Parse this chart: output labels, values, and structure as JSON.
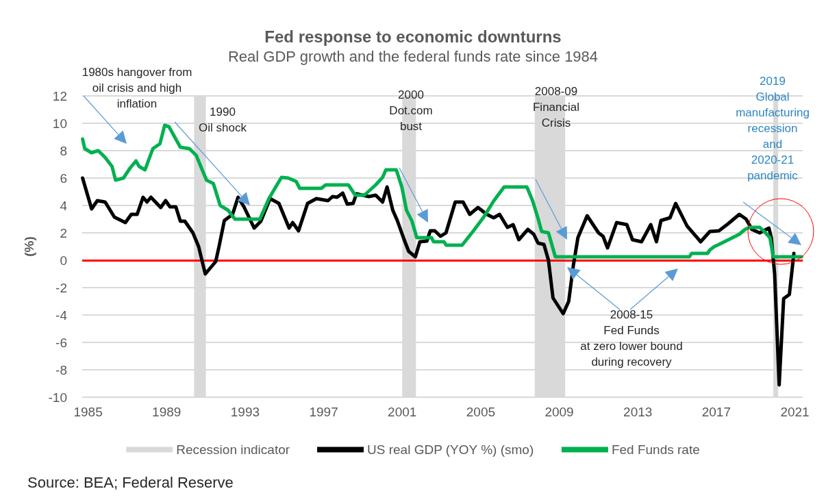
{
  "chart_data": {
    "type": "line",
    "title": "Fed response to economic downturns",
    "subtitle": "Real GDP growth and the federal funds rate since 1984",
    "ylabel": "(%)",
    "xlim": [
      1984.7,
      2021.4
    ],
    "xticks": [
      1985,
      1989,
      1993,
      1997,
      2001,
      2005,
      2009,
      2013,
      2017,
      2021
    ],
    "ylim": [
      -10,
      12
    ],
    "yticks": [
      -10,
      -8,
      -6,
      -4,
      -2,
      0,
      2,
      4,
      6,
      8,
      10,
      12
    ],
    "grid": "y",
    "legend": "bottom",
    "marker": "none",
    "line_style": "solid",
    "bands": [
      {
        "axis": "x",
        "from": 1990.4,
        "to": 1991.0,
        "label": "Recession indicator",
        "color": "#d9d9d9"
      },
      {
        "axis": "x",
        "from": 2001.0,
        "to": 2001.7,
        "color": "#d9d9d9"
      },
      {
        "axis": "x",
        "from": 2007.75,
        "to": 2009.3,
        "color": "#d9d9d9"
      },
      {
        "axis": "x",
        "from": 2019.9,
        "to": 2020.15,
        "color": "#d9d9d9"
      }
    ],
    "ref_lines": [
      {
        "axis": "y",
        "value": 0,
        "color": "#ff0000"
      }
    ],
    "series": [
      {
        "name": "US real GDP (YOY %) (smo)",
        "color": "#000000",
        "x": [
          1984.72,
          1985.18,
          1985.47,
          1985.87,
          1986.34,
          1986.9,
          1987.2,
          1987.5,
          1987.8,
          1988.0,
          1988.2,
          1988.7,
          1988.95,
          1989.17,
          1989.47,
          1989.7,
          1989.93,
          1990.34,
          1990.63,
          1990.97,
          1991.5,
          1991.67,
          1991.94,
          1992.36,
          1992.64,
          1992.94,
          1993.46,
          1993.8,
          1994.27,
          1994.72,
          1995.24,
          1995.42,
          1995.72,
          1996.18,
          1996.63,
          1997.22,
          1997.45,
          1997.68,
          1997.97,
          1998.2,
          1998.5,
          1998.67,
          1999.3,
          1999.65,
          2000.0,
          2000.23,
          2000.52,
          2000.75,
          2001.1,
          2001.33,
          2001.67,
          2001.9,
          2002.26,
          2002.43,
          2002.66,
          2002.95,
          2003.23,
          2003.7,
          2004.1,
          2004.44,
          2004.86,
          2005.31,
          2005.66,
          2005.96,
          2006.36,
          2006.65,
          2006.94,
          2007.4,
          2007.7,
          2007.92,
          2008.22,
          2008.45,
          2008.68,
          2009.2,
          2009.48,
          2009.72,
          2009.95,
          2010.42,
          2011.0,
          2011.23,
          2011.46,
          2011.92,
          2012.44,
          2012.73,
          2013.19,
          2013.66,
          2013.95,
          2014.18,
          2014.64,
          2014.93,
          2015.51,
          2016.2,
          2016.67,
          2017.13,
          2017.59,
          2018.17,
          2018.52,
          2018.81,
          2019.21,
          2019.68,
          2019.8,
          2019.97,
          2020.2,
          2020.43,
          2020.72,
          2020.95
        ],
        "values": [
          6.0,
          3.75,
          4.35,
          4.25,
          3.15,
          2.75,
          3.35,
          3.35,
          4.6,
          4.25,
          4.6,
          3.85,
          4.35,
          3.9,
          3.9,
          2.85,
          2.85,
          2.0,
          1.0,
          -1.0,
          -0.1,
          1.0,
          2.9,
          3.35,
          4.6,
          3.9,
          2.35,
          2.85,
          4.5,
          4.15,
          2.35,
          2.75,
          2.15,
          4.15,
          4.5,
          4.35,
          4.65,
          4.6,
          4.9,
          4.1,
          4.15,
          4.85,
          4.65,
          4.75,
          4.25,
          5.35,
          3.65,
          2.9,
          1.5,
          0.65,
          0.25,
          1.35,
          1.4,
          2.15,
          2.15,
          1.75,
          2.0,
          4.25,
          4.25,
          3.35,
          3.85,
          3.35,
          3.1,
          3.35,
          2.4,
          2.6,
          1.5,
          2.25,
          1.9,
          1.25,
          1.15,
          0.0,
          -2.75,
          -3.9,
          -3.0,
          -0.35,
          1.65,
          3.25,
          2.0,
          1.75,
          0.9,
          2.75,
          2.6,
          1.5,
          1.35,
          2.6,
          1.35,
          2.9,
          3.1,
          4.15,
          2.5,
          1.35,
          2.1,
          2.15,
          2.65,
          3.35,
          3.0,
          2.25,
          2.0,
          2.35,
          1.65,
          -1.0,
          -9.1,
          -2.8,
          -2.5,
          0.5
        ]
      },
      {
        "name": "Fed Funds rate",
        "color": "#00b050",
        "x": [
          1984.72,
          1984.83,
          1985.17,
          1985.52,
          1985.87,
          1986.22,
          1986.4,
          1986.8,
          1987.15,
          1987.44,
          1987.6,
          1987.9,
          1988.3,
          1988.66,
          1988.9,
          1989.12,
          1989.41,
          1989.7,
          1990.16,
          1990.51,
          1991.03,
          1991.38,
          1991.73,
          1992.13,
          1992.48,
          1993.75,
          1994.21,
          1994.62,
          1994.85,
          1995.2,
          1995.6,
          1995.78,
          1996.88,
          1997.1,
          1998.26,
          1998.61,
          1999.07,
          1999.65,
          2000.0,
          2000.17,
          2000.7,
          2000.98,
          2001.22,
          2001.5,
          2001.74,
          2002.49,
          2002.6,
          2003.13,
          2003.24,
          2004.05,
          2004.63,
          2005.15,
          2005.67,
          2006.19,
          2007.35,
          2007.64,
          2007.93,
          2008.1,
          2008.45,
          2008.68,
          2008.8,
          2015.63,
          2015.74,
          2016.55,
          2016.67,
          2016.9,
          2017.13,
          2017.48,
          2017.83,
          2018.17,
          2018.46,
          2018.69,
          2019.21,
          2019.44,
          2019.73,
          2019.9,
          2021.34
        ],
        "values": [
          8.85,
          8.15,
          7.85,
          8.0,
          7.5,
          6.85,
          5.85,
          6.0,
          6.75,
          7.25,
          6.85,
          6.6,
          8.15,
          8.5,
          9.85,
          9.75,
          9.0,
          8.25,
          8.15,
          7.65,
          5.85,
          5.6,
          4.0,
          3.65,
          3.0,
          3.0,
          4.5,
          5.5,
          6.05,
          6.0,
          5.75,
          5.25,
          5.25,
          5.5,
          5.5,
          4.75,
          4.75,
          5.5,
          6.05,
          6.6,
          6.6,
          5.35,
          3.65,
          2.85,
          1.65,
          1.65,
          1.35,
          1.35,
          1.1,
          1.1,
          2.15,
          3.15,
          4.35,
          5.35,
          5.35,
          4.35,
          3.0,
          2.1,
          2.0,
          0.85,
          0.25,
          0.25,
          0.5,
          0.5,
          0.75,
          1.0,
          1.15,
          1.4,
          1.65,
          1.9,
          2.25,
          2.4,
          2.4,
          2.1,
          1.65,
          0.25,
          0.25
        ]
      }
    ],
    "annotations": [
      "1980s hangover from\noil crisis and high\ninflation",
      "1990\nOil shock",
      "2000\nDot.com\nbust",
      "2008-09\nFinancial\nCrisis",
      "2008-15\nFed Funds\nat zero lower bound\nduring recovery",
      "2019\nGlobal\nmanufacturing\nrecession\nand\n2020-21\npandemic",
      "Source: BEA; Federal Reserve"
    ]
  }
}
